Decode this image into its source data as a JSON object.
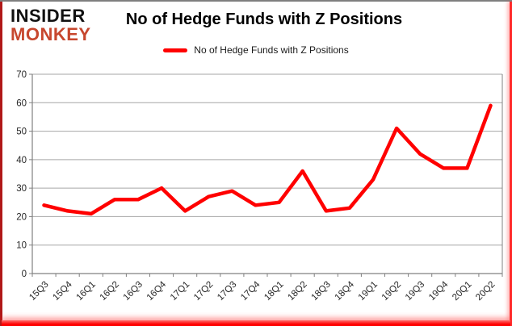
{
  "logo": {
    "line1": "INSIDER",
    "line2": "MONKEY",
    "monkey_color": "#c7472e"
  },
  "title": "No of Hedge Funds with Z Positions",
  "legend": {
    "label": "No of Hedge Funds with Z Positions",
    "swatch_color": "#ff0000"
  },
  "chart_data": {
    "type": "line",
    "title": "No of Hedge Funds with Z Positions",
    "categories": [
      "15Q3",
      "15Q4",
      "16Q1",
      "16Q2",
      "16Q3",
      "16Q4",
      "17Q1",
      "17Q2",
      "17Q3",
      "17Q4",
      "18Q1",
      "18Q2",
      "18Q3",
      "18Q4",
      "19Q1",
      "19Q2",
      "19Q3",
      "19Q4",
      "20Q1",
      "20Q2"
    ],
    "series": [
      {
        "name": "No of Hedge Funds with Z Positions",
        "color": "#ff0000",
        "values": [
          24,
          22,
          21,
          26,
          26,
          30,
          22,
          27,
          29,
          24,
          25,
          36,
          22,
          23,
          33,
          51,
          42,
          37,
          37,
          59
        ]
      }
    ],
    "xlabel": "",
    "ylabel": "",
    "ylim": [
      0,
      70
    ],
    "yticks": [
      0,
      10,
      20,
      30,
      40,
      50,
      60,
      70
    ],
    "grid": "horizontal",
    "legend_position": "top-center",
    "gridline_color": "#a6a6a6",
    "axis_color": "#808080",
    "tick_label_color": "#262626"
  },
  "frame": {
    "top_color": "#7f7f7f",
    "side_color": "#b01818",
    "bottom_color": "#ff0000"
  }
}
